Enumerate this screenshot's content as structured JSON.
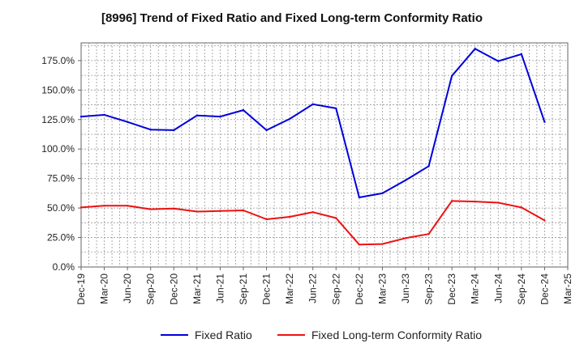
{
  "chart_data": {
    "type": "line",
    "title": "[8996]  Trend of Fixed Ratio and Fixed Long-term Conformity Ratio",
    "xlabel": "",
    "ylabel": "",
    "categories": [
      "Dec-19",
      "Mar-20",
      "Jun-20",
      "Sep-20",
      "Dec-20",
      "Mar-21",
      "Jun-21",
      "Sep-21",
      "Dec-21",
      "Mar-22",
      "Jun-22",
      "Sep-22",
      "Dec-22",
      "Mar-23",
      "Jun-23",
      "Sep-23",
      "Dec-23",
      "Mar-24",
      "Jun-24",
      "Sep-24",
      "Dec-24",
      "Mar-25"
    ],
    "y_ticks": [
      "0.0%",
      "25.0%",
      "50.0%",
      "75.0%",
      "100.0%",
      "125.0%",
      "150.0%",
      "175.0%"
    ],
    "ylim": [
      0,
      190
    ],
    "grid": true,
    "legend_position": "bottom",
    "series": [
      {
        "name": "Fixed Ratio",
        "color": "#0000dd",
        "values": [
          127.5,
          129,
          123,
          116.5,
          116,
          128.5,
          127.5,
          133,
          116,
          125.5,
          138,
          134.5,
          59,
          62.5,
          73.5,
          85.5,
          162,
          185,
          174.5,
          180.5,
          123,
          null
        ]
      },
      {
        "name": "Fixed Long-term Conformity Ratio",
        "color": "#ee1111",
        "values": [
          50.5,
          52,
          52,
          49,
          49.5,
          47,
          47.5,
          48,
          40.5,
          42.5,
          46.5,
          41.5,
          19,
          19.5,
          24.5,
          28,
          56,
          55.5,
          54.5,
          50.5,
          39.5,
          null
        ]
      }
    ]
  }
}
